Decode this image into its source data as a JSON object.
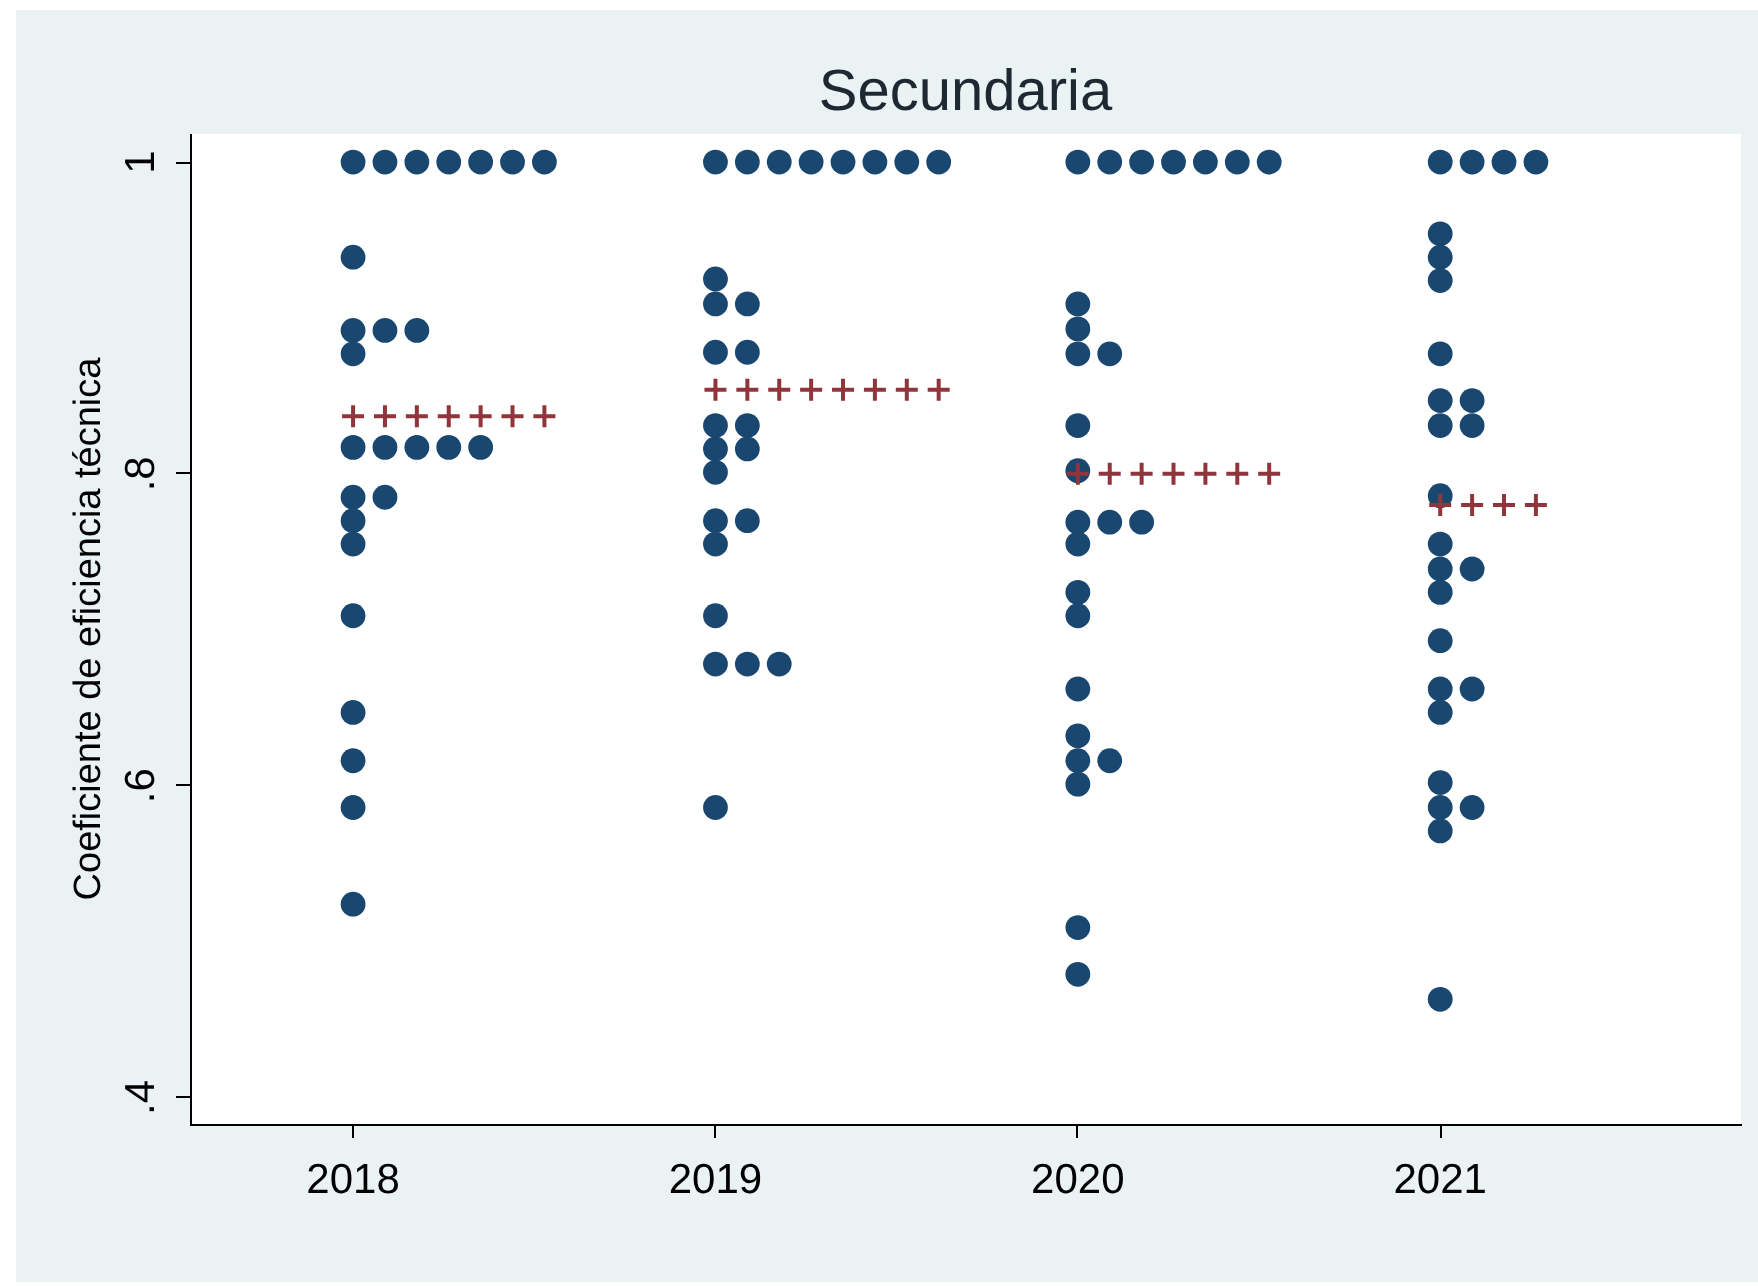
{
  "chart_data": {
    "type": "scatter",
    "title": "Secundaria",
    "ylabel": "Coeficiente de eficiencia técnica",
    "xlim": [
      2017.55,
      2021.83
    ],
    "xticks": [
      2018,
      2019,
      2020,
      2021
    ],
    "ylim": [
      0.383,
      1.018
    ],
    "yticks": [
      {
        "value": 0.4,
        "label": ".4"
      },
      {
        "value": 0.6,
        "label": ".6"
      },
      {
        "value": 0.8,
        "label": ".8"
      },
      1
    ],
    "grid": false,
    "legend": false,
    "series": [
      {
        "color": "#1a476f",
        "marker": "circle",
        "x": [
          2018,
          2018.088,
          2018.176,
          2018.264,
          2018.352,
          2018.44,
          2018.528,
          2018,
          2018,
          2018.088,
          2018.176,
          2018,
          2018,
          2018.088,
          2018.176,
          2018.264,
          2018.352,
          2018,
          2018.088,
          2018,
          2018,
          2018,
          2018,
          2018,
          2018,
          2018,
          2019,
          2019.088,
          2019.176,
          2019.264,
          2019.352,
          2019.44,
          2019.528,
          2019.616,
          2019,
          2019,
          2019.088,
          2019,
          2019.088,
          2019,
          2019.088,
          2019,
          2019.088,
          2019,
          2019,
          2019.088,
          2019,
          2019,
          2019,
          2019.088,
          2019.176,
          2019,
          2020,
          2020.088,
          2020.176,
          2020.264,
          2020.352,
          2020.44,
          2020.528,
          2020,
          2020,
          2020,
          2020.088,
          2020,
          2020,
          2020,
          2020.088,
          2020.176,
          2020,
          2020,
          2020,
          2020,
          2020,
          2020,
          2020.088,
          2020,
          2020,
          2020,
          2021,
          2021.088,
          2021.176,
          2021.264,
          2021,
          2021,
          2021,
          2021,
          2021,
          2021.088,
          2021,
          2021.088,
          2021,
          2021,
          2021,
          2021.088,
          2021,
          2021,
          2021,
          2021.088,
          2021,
          2021,
          2021,
          2021.088,
          2021,
          2021
        ],
        "values": [
          1,
          1,
          1,
          1,
          1,
          1,
          1,
          0.939,
          0.892,
          0.892,
          0.892,
          0.877,
          0.817,
          0.817,
          0.817,
          0.817,
          0.817,
          0.785,
          0.785,
          0.77,
          0.755,
          0.709,
          0.647,
          0.616,
          0.586,
          0.524,
          1,
          1,
          1,
          1,
          1,
          1,
          1,
          1,
          0.925,
          0.909,
          0.909,
          0.878,
          0.878,
          0.831,
          0.831,
          0.816,
          0.816,
          0.801,
          0.77,
          0.77,
          0.755,
          0.709,
          0.678,
          0.678,
          0.678,
          0.586,
          1,
          1,
          1,
          1,
          1,
          1,
          1,
          0.909,
          0.893,
          0.877,
          0.877,
          0.831,
          0.802,
          0.769,
          0.769,
          0.769,
          0.755,
          0.724,
          0.709,
          0.662,
          0.632,
          0.616,
          0.616,
          0.601,
          0.509,
          0.479,
          1,
          1,
          1,
          1,
          0.954,
          0.939,
          0.924,
          0.877,
          0.847,
          0.847,
          0.831,
          0.831,
          0.786,
          0.755,
          0.739,
          0.739,
          0.724,
          0.693,
          0.662,
          0.662,
          0.647,
          0.602,
          0.586,
          0.586,
          0.571,
          0.463
        ]
      },
      {
        "color": "#90353b",
        "marker": "cross",
        "x": [
          2018,
          2018.088,
          2018.176,
          2018.264,
          2018.352,
          2018.44,
          2018.528,
          2019,
          2019.088,
          2019.176,
          2019.264,
          2019.352,
          2019.44,
          2019.528,
          2019.616,
          2020,
          2020.088,
          2020.176,
          2020.264,
          2020.352,
          2020.44,
          2020.528,
          2021,
          2021.088,
          2021.176,
          2021.264
        ],
        "values": [
          0.837,
          0.837,
          0.837,
          0.837,
          0.837,
          0.837,
          0.837,
          0.854,
          0.854,
          0.854,
          0.854,
          0.854,
          0.854,
          0.854,
          0.854,
          0.8,
          0.8,
          0.8,
          0.8,
          0.8,
          0.8,
          0.8,
          0.78,
          0.78,
          0.78,
          0.78
        ]
      }
    ]
  }
}
